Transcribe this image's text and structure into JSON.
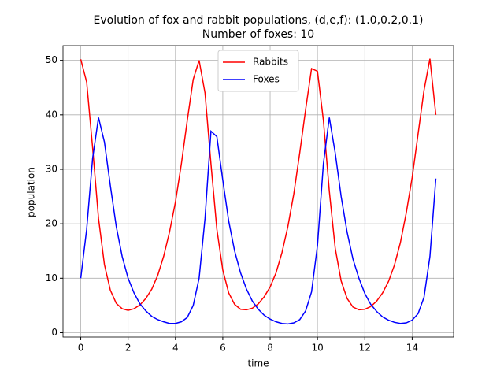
{
  "chart_data": {
    "type": "line",
    "title": "Evolution of fox and rabbit populations, (d,e,f): (1.0,0.2,0.1)",
    "subtitle": "Number of foxes: 10",
    "x_label": "time",
    "y_label": "population",
    "x": [
      0,
      0.25,
      0.5,
      0.75,
      1,
      1.25,
      1.5,
      1.75,
      2,
      2.25,
      2.5,
      2.75,
      3,
      3.25,
      3.5,
      3.75,
      4,
      4.25,
      4.5,
      4.75,
      5,
      5.25,
      5.5,
      5.75,
      6,
      6.25,
      6.5,
      6.75,
      7,
      7.25,
      7.5,
      7.75,
      8,
      8.25,
      8.5,
      8.75,
      9,
      9.25,
      9.5,
      9.75,
      10,
      10.25,
      10.5,
      10.75,
      11,
      11.25,
      11.5,
      11.75,
      12,
      12.25,
      12.5,
      12.75,
      13,
      13.25,
      13.5,
      13.75,
      14,
      14.25,
      14.5,
      14.75,
      15
    ],
    "series": [
      {
        "name": "Rabbits",
        "color": "#ff0000",
        "values": [
          50.2,
          46,
          34,
          21,
          12.5,
          7.8,
          5.4,
          4.4,
          4.1,
          4.4,
          5.1,
          6.3,
          8,
          10.5,
          14,
          18.5,
          24,
          31,
          39,
          46.5,
          50,
          44,
          31,
          19,
          11.5,
          7.3,
          5.2,
          4.3,
          4.2,
          4.5,
          5.3,
          6.6,
          8.4,
          11,
          14.7,
          19.5,
          25.5,
          33,
          41,
          48.5,
          48,
          39,
          26,
          15.5,
          9.5,
          6.3,
          4.7,
          4.2,
          4.3,
          4.8,
          5.8,
          7.3,
          9.4,
          12.4,
          16.5,
          22,
          28.5,
          36.5,
          44.5,
          50.3,
          40
        ]
      },
      {
        "name": "Foxes",
        "color": "#0000ff",
        "values": [
          10,
          19,
          32,
          39.5,
          35,
          27,
          19.5,
          14,
          10,
          7.3,
          5.3,
          4,
          3,
          2.4,
          2,
          1.7,
          1.7,
          2,
          2.8,
          5,
          10,
          21,
          37,
          36,
          28,
          20.5,
          15,
          11,
          8,
          5.8,
          4.3,
          3.2,
          2.5,
          2,
          1.7,
          1.6,
          1.8,
          2.4,
          4,
          7.5,
          16,
          31,
          39.5,
          33,
          25,
          18.5,
          13.5,
          10,
          7.2,
          5.2,
          3.9,
          2.9,
          2.3,
          1.9,
          1.7,
          1.8,
          2.3,
          3.5,
          6.5,
          14,
          28.3
        ]
      }
    ],
    "xlim": [
      -0.75,
      15.75
    ],
    "xticks": [
      0,
      2,
      4,
      6,
      8,
      10,
      12,
      14
    ],
    "ylim": [
      -0.8,
      52.7
    ],
    "yticks": [
      0,
      10,
      20,
      30,
      40,
      50
    ],
    "grid": true,
    "legend": "upper center"
  }
}
